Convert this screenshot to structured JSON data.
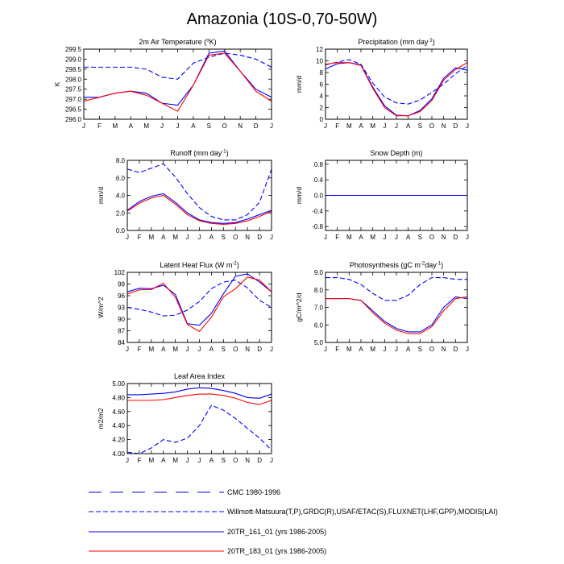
{
  "title": "Amazonia (10S-0,70-50W)",
  "months": [
    "J",
    "F",
    "M",
    "A",
    "M",
    "J",
    "J",
    "A",
    "S",
    "O",
    "N",
    "D",
    "J"
  ],
  "legend": [
    {
      "label": "CMC 1980-1996",
      "color": "#0000ff",
      "dash": "long"
    },
    {
      "label": "Willmott-Matsuura(T,P),GRDC(R),USAF/ETAC(S),FLUXNET(LHF,GPP),MODIS(LAI)",
      "color": "#0000ff",
      "dash": "short"
    },
    {
      "label": "20TR_161_01 (yrs 1986-2005)",
      "color": "#0000ff",
      "dash": "solid"
    },
    {
      "label": "20TR_183_01 (yrs 1986-2005)",
      "color": "#ff0000",
      "dash": "solid"
    }
  ],
  "chart_data": [
    {
      "type": "line",
      "title": "2m Air Temperature (",
      "title_sup": "o",
      "title_tail": "K)",
      "ylabel": "K",
      "ylim": [
        296.0,
        299.5
      ],
      "yticks": [
        296.0,
        296.5,
        297.0,
        297.5,
        298.0,
        298.5,
        299.0,
        299.5
      ],
      "decimals": 1,
      "series": [
        {
          "name": "Willmott-Matsuura",
          "color": "#0000ff",
          "dash": "short",
          "values": [
            298.6,
            298.6,
            298.6,
            298.6,
            298.5,
            298.1,
            298.0,
            298.8,
            299.1,
            299.3,
            299.2,
            299.0,
            298.6
          ]
        },
        {
          "name": "20TR_161_01",
          "color": "#0000ff",
          "dash": "solid",
          "values": [
            297.1,
            297.1,
            297.3,
            297.4,
            297.3,
            296.8,
            296.7,
            297.7,
            299.3,
            299.4,
            298.4,
            297.5,
            297.1
          ]
        },
        {
          "name": "20TR_183_01",
          "color": "#ff0000",
          "dash": "solid",
          "values": [
            296.9,
            297.1,
            297.3,
            297.4,
            297.2,
            296.8,
            296.4,
            297.7,
            299.2,
            299.3,
            298.4,
            297.4,
            296.9
          ]
        }
      ]
    },
    {
      "type": "line",
      "title": "Precipitation (mm day",
      "title_sup": "-1",
      "title_tail": ")",
      "ylabel": "mm/d",
      "ylim": [
        0,
        12
      ],
      "yticks": [
        0,
        2,
        4,
        6,
        8,
        10,
        12
      ],
      "decimals": 0,
      "series": [
        {
          "name": "Willmott-Matsuura",
          "color": "#0000ff",
          "dash": "short",
          "values": [
            9.3,
            9.8,
            10.2,
            9.4,
            6.2,
            3.8,
            2.8,
            2.6,
            3.3,
            4.6,
            6.0,
            7.8,
            9.2
          ]
        },
        {
          "name": "20TR_161_01",
          "color": "#0000ff",
          "dash": "solid",
          "values": [
            8.6,
            9.5,
            9.7,
            9.3,
            5.5,
            2.3,
            0.7,
            0.6,
            1.5,
            3.5,
            7.0,
            8.8,
            8.4
          ]
        },
        {
          "name": "20TR_183_01",
          "color": "#ff0000",
          "dash": "solid",
          "values": [
            9.4,
            9.7,
            9.7,
            9.2,
            5.3,
            2.0,
            0.6,
            0.6,
            1.3,
            3.2,
            6.7,
            8.5,
            9.7
          ]
        }
      ]
    },
    {
      "type": "line",
      "title": "Runoff (mm day",
      "title_sup": "-1",
      "title_tail": ")",
      "ylabel": "mm/d",
      "ylim": [
        0,
        8
      ],
      "yticks": [
        0.0,
        2.0,
        4.0,
        6.0,
        8.0
      ],
      "decimals": 1,
      "series": [
        {
          "name": "GRDC",
          "color": "#0000ff",
          "dash": "short",
          "values": [
            7.0,
            6.6,
            7.1,
            7.6,
            6.1,
            4.2,
            2.6,
            1.6,
            1.2,
            1.2,
            1.8,
            3.2,
            7.0
          ]
        },
        {
          "name": "20TR_161_01",
          "color": "#0000ff",
          "dash": "solid",
          "values": [
            2.3,
            3.3,
            3.9,
            4.2,
            3.2,
            2.0,
            1.2,
            0.9,
            0.8,
            0.9,
            1.3,
            1.8,
            2.3
          ]
        },
        {
          "name": "20TR_183_01",
          "color": "#ff0000",
          "dash": "solid",
          "values": [
            2.2,
            3.1,
            3.7,
            4.0,
            3.0,
            1.8,
            1.1,
            0.8,
            0.7,
            0.8,
            1.1,
            1.6,
            2.2
          ]
        }
      ]
    },
    {
      "type": "line",
      "title": "Snow Depth (m)",
      "title_sup": "",
      "title_tail": "",
      "ylabel": "mm/d",
      "ylim": [
        -0.9,
        0.9
      ],
      "yticks": [
        -0.8,
        -0.4,
        0.0,
        0.4,
        0.8
      ],
      "decimals": 1,
      "series": [
        {
          "name": "CMC",
          "color": "#0000ff",
          "dash": "long",
          "values": [
            0,
            0,
            0,
            0,
            0,
            0,
            0,
            0,
            0,
            0,
            0,
            0,
            0
          ]
        },
        {
          "name": "20TR_183_01",
          "color": "#ff0000",
          "dash": "solid",
          "values": [
            0,
            0,
            0,
            0,
            0,
            0,
            0,
            0,
            0,
            0,
            0,
            0,
            0
          ]
        },
        {
          "name": "20TR_161_01",
          "color": "#0000ff",
          "dash": "solid",
          "values": [
            0,
            0,
            0,
            0,
            0,
            0,
            0,
            0,
            0,
            0,
            0,
            0,
            0
          ]
        }
      ]
    },
    {
      "type": "line",
      "title": "Latent Heat Flux (W m",
      "title_sup": "-2",
      "title_tail": ")",
      "ylabel": "W/m^2",
      "ylim": [
        84,
        102
      ],
      "yticks": [
        84,
        87,
        90,
        93,
        96,
        99,
        102
      ],
      "decimals": 0,
      "series": [
        {
          "name": "FLUXNET",
          "color": "#0000ff",
          "dash": "short",
          "values": [
            93.0,
            92.5,
            91.8,
            90.8,
            91.0,
            92.3,
            94.5,
            97.8,
            99.5,
            100.0,
            98.0,
            94.8,
            93.0
          ]
        },
        {
          "name": "20TR_161_01",
          "color": "#0000ff",
          "dash": "solid",
          "values": [
            97.0,
            97.9,
            97.8,
            98.7,
            96.3,
            88.8,
            88.4,
            91.5,
            96.5,
            101.0,
            101.6,
            99.5,
            97.0
          ]
        },
        {
          "name": "20TR_183_01",
          "color": "#ff0000",
          "dash": "solid",
          "values": [
            96.4,
            97.5,
            97.6,
            99.2,
            95.6,
            88.6,
            86.8,
            90.5,
            95.7,
            97.8,
            100.8,
            100.0,
            97.0
          ]
        }
      ]
    },
    {
      "type": "line",
      "title": "Photosynthesis (gC m",
      "title_sup": "-2",
      "title_tail": "day",
      "title_sup2": "-1",
      "title_tail2": ")",
      "ylabel": "gC/m^2/d",
      "ylim": [
        5.0,
        9.0
      ],
      "yticks": [
        5.0,
        6.0,
        7.0,
        8.0,
        9.0
      ],
      "decimals": 1,
      "series": [
        {
          "name": "FLUXNET",
          "color": "#0000ff",
          "dash": "short",
          "values": [
            8.7,
            8.7,
            8.6,
            8.3,
            7.8,
            7.4,
            7.4,
            7.7,
            8.3,
            8.7,
            8.7,
            8.6,
            8.6
          ]
        },
        {
          "name": "20TR_161_01",
          "color": "#0000ff",
          "dash": "solid",
          "values": [
            7.5,
            7.5,
            7.5,
            7.4,
            6.8,
            6.2,
            5.8,
            5.6,
            5.6,
            6.0,
            7.0,
            7.6,
            7.5
          ]
        },
        {
          "name": "20TR_183_01",
          "color": "#ff0000",
          "dash": "solid",
          "values": [
            7.5,
            7.5,
            7.5,
            7.4,
            6.7,
            6.1,
            5.7,
            5.5,
            5.5,
            5.9,
            6.8,
            7.5,
            7.6
          ]
        }
      ]
    },
    {
      "type": "line",
      "title": "Leaf Area Index",
      "title_sup": "",
      "title_tail": "",
      "ylabel": "m2/m2",
      "ylim": [
        4.0,
        5.0
      ],
      "yticks": [
        4.0,
        4.2,
        4.4,
        4.6,
        4.8,
        5.0
      ],
      "decimals": 2,
      "series": [
        {
          "name": "MODIS",
          "color": "#0000ff",
          "dash": "short",
          "values": [
            4.02,
            4.0,
            4.08,
            4.2,
            4.16,
            4.22,
            4.4,
            4.69,
            4.62,
            4.5,
            4.36,
            4.22,
            4.05
          ]
        },
        {
          "name": "20TR_161_01",
          "color": "#0000ff",
          "dash": "solid",
          "values": [
            4.84,
            4.84,
            4.85,
            4.86,
            4.88,
            4.92,
            4.94,
            4.93,
            4.9,
            4.86,
            4.8,
            4.79,
            4.85
          ]
        },
        {
          "name": "20TR_183_01",
          "color": "#ff0000",
          "dash": "solid",
          "values": [
            4.76,
            4.76,
            4.76,
            4.77,
            4.8,
            4.83,
            4.85,
            4.85,
            4.83,
            4.79,
            4.73,
            4.7,
            4.76
          ]
        }
      ]
    }
  ]
}
